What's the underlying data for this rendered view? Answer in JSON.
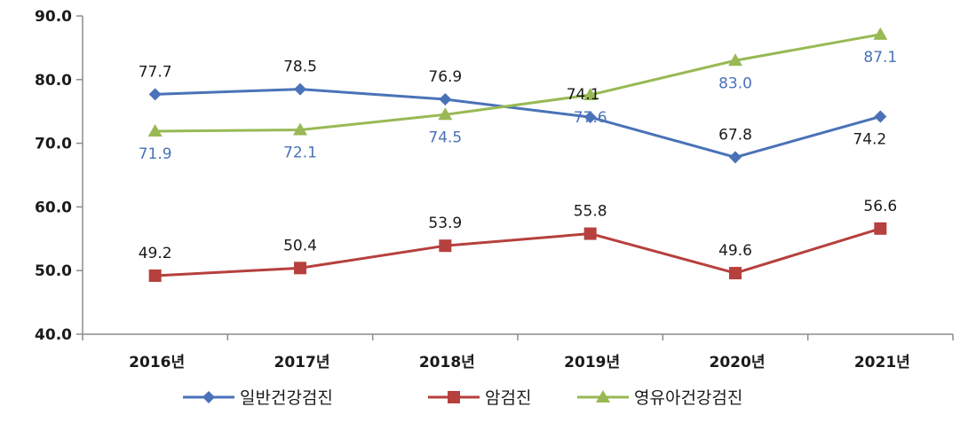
{
  "chart_data": {
    "type": "line",
    "title": "",
    "xlabel": "",
    "ylabel": "",
    "ylim": [
      40,
      90
    ],
    "yticks": [
      "40.0",
      "50.0",
      "60.0",
      "70.0",
      "80.0",
      "90.0"
    ],
    "categories": [
      "2016년",
      "2017년",
      "2018년",
      "2019년",
      "2020년",
      "2021년"
    ],
    "grid": false,
    "legend_position": "bottom",
    "series": [
      {
        "name": "일반건강검진",
        "color": "#4a72b8",
        "marker": "diamond",
        "label_color": "#1a1a1a",
        "values": [
          77.7,
          78.5,
          76.9,
          74.1,
          67.8,
          74.2
        ],
        "labels": [
          "77.7",
          "78.5",
          "76.9",
          "74.1",
          "67.8",
          "74.2"
        ]
      },
      {
        "name": "암검진",
        "color": "#b6403d",
        "marker": "square",
        "label_color": "#1a1a1a",
        "values": [
          49.2,
          50.4,
          53.9,
          55.8,
          49.6,
          56.6
        ],
        "labels": [
          "49.2",
          "50.4",
          "53.9",
          "55.8",
          "49.6",
          "56.6"
        ]
      },
      {
        "name": "영유아건강검진",
        "color": "#98b954",
        "marker": "triangle",
        "label_color": "#4a72b8",
        "values": [
          71.9,
          72.1,
          74.5,
          77.6,
          83.0,
          87.1
        ],
        "labels": [
          "71.9",
          "72.1",
          "74.5",
          "77.6",
          "83.0",
          "87.1"
        ]
      }
    ]
  }
}
